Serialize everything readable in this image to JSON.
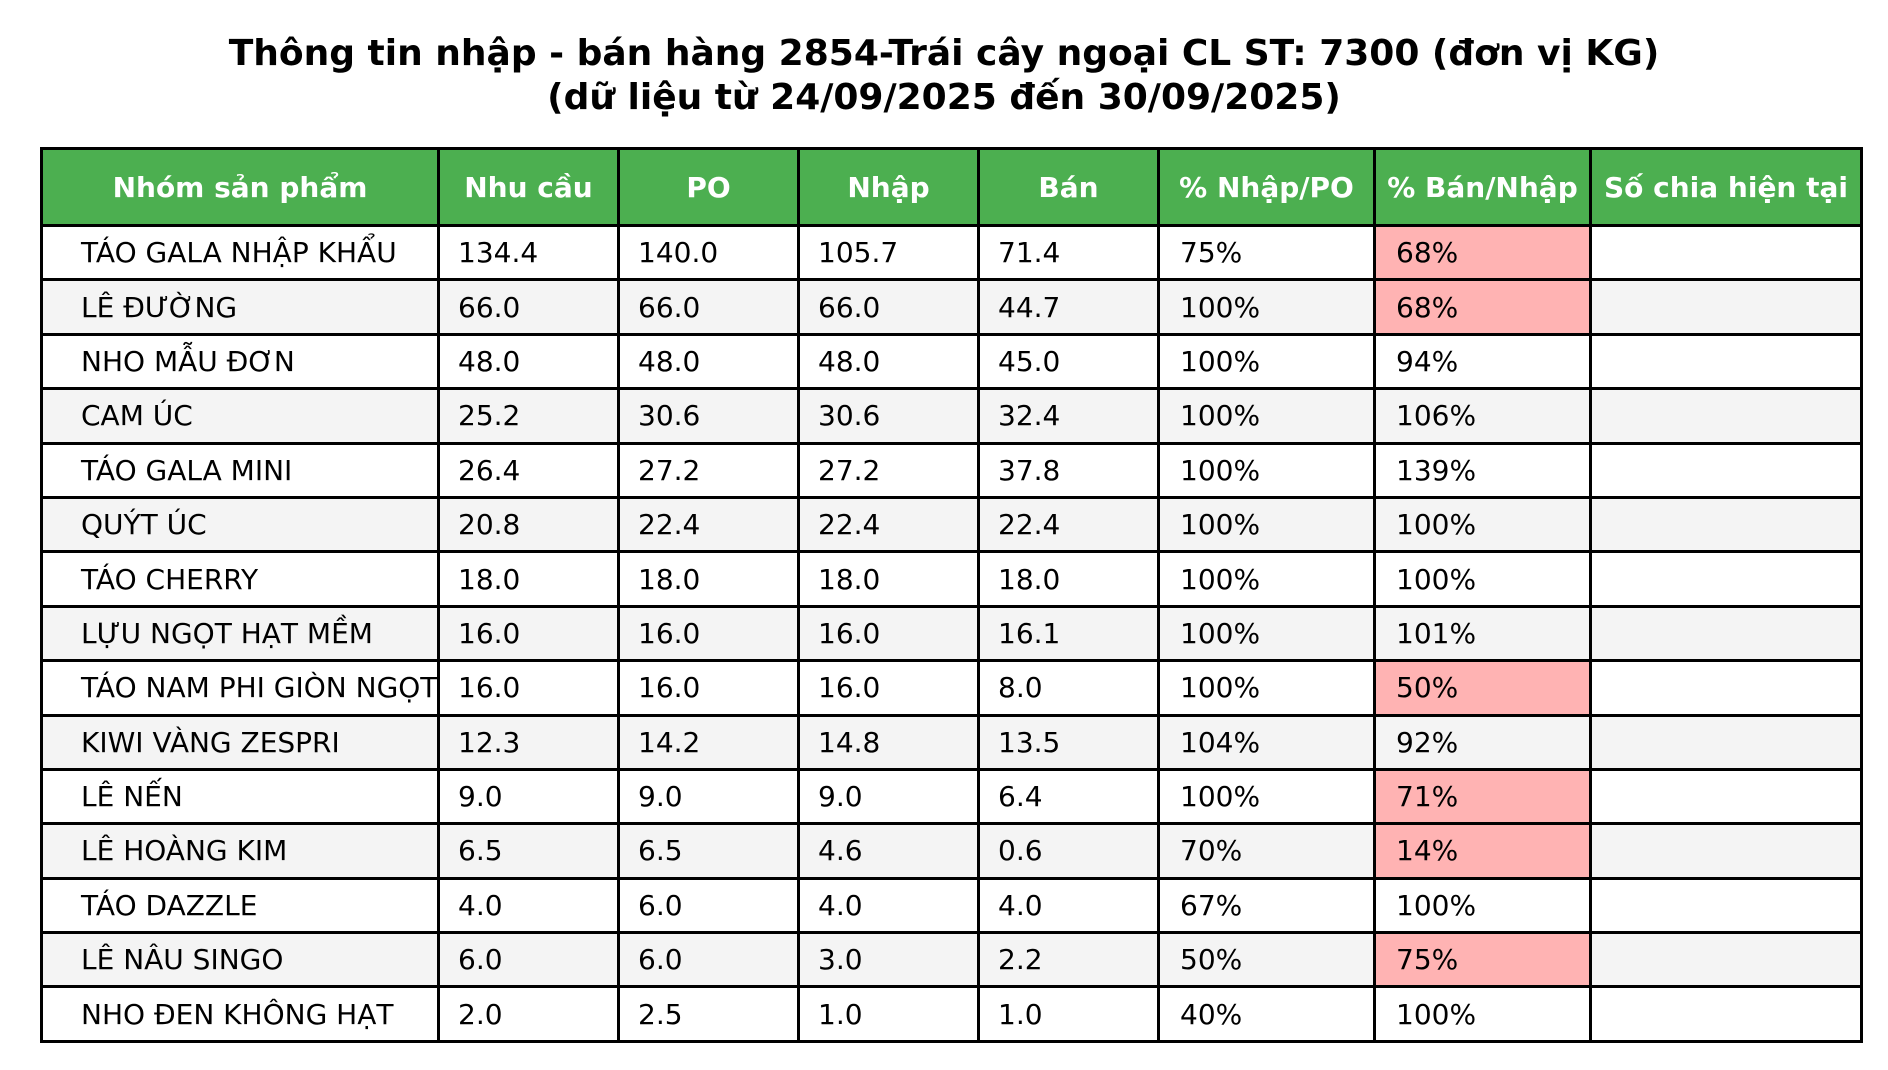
{
  "title_line1": "Thông tin nhập - bán hàng 2854-Trái cây ngoại CL ST: 7300 (đơn vị KG)",
  "title_line2": "(dữ liệu từ 24/09/2025 đến 30/09/2025)",
  "colors": {
    "header_bg": "#4CAF50",
    "header_text": "#ffffff",
    "flag_bg": "#ffb3b3",
    "alt_row_bg": "#f4f4f4"
  },
  "chart_data": {
    "type": "table",
    "title": "Thông tin nhập - bán hàng 2854-Trái cây ngoại CL ST: 7300 (đơn vị KG)",
    "subtitle": "(dữ liệu từ 24/09/2025 đến 30/09/2025)",
    "columns": [
      "Nhóm sản phẩm",
      "Nhu cầu",
      "PO",
      "Nhập",
      "Bán",
      "% Nhập/PO",
      "% Bán/Nhập",
      "Số chia hiện tại"
    ],
    "rows": [
      [
        "TÁO GALA NHẬP KHẨU",
        "134.4",
        "140.0",
        "105.7",
        "71.4",
        "75%",
        "68%",
        ""
      ],
      [
        "LÊ ĐƯỜNG",
        "66.0",
        "66.0",
        "66.0",
        "44.7",
        "100%",
        "68%",
        ""
      ],
      [
        "NHO MẪU ĐƠN",
        "48.0",
        "48.0",
        "48.0",
        "45.0",
        "100%",
        "94%",
        ""
      ],
      [
        "CAM ÚC",
        "25.2",
        "30.6",
        "30.6",
        "32.4",
        "100%",
        "106%",
        ""
      ],
      [
        "TÁO GALA MINI",
        "26.4",
        "27.2",
        "27.2",
        "37.8",
        "100%",
        "139%",
        ""
      ],
      [
        "QUÝT ÚC",
        "20.8",
        "22.4",
        "22.4",
        "22.4",
        "100%",
        "100%",
        ""
      ],
      [
        "TÁO CHERRY",
        "18.0",
        "18.0",
        "18.0",
        "18.0",
        "100%",
        "100%",
        ""
      ],
      [
        "LỰU NGỌT HẠT MỀM",
        "16.0",
        "16.0",
        "16.0",
        "16.1",
        "100%",
        "101%",
        ""
      ],
      [
        "TÁO NAM PHI GIÒN NGỌT",
        "16.0",
        "16.0",
        "16.0",
        "8.0",
        "100%",
        "50%",
        ""
      ],
      [
        "KIWI VÀNG ZESPRI",
        "12.3",
        "14.2",
        "14.8",
        "13.5",
        "104%",
        "92%",
        ""
      ],
      [
        "LÊ NẾN",
        "9.0",
        "9.0",
        "9.0",
        "6.4",
        "100%",
        "71%",
        ""
      ],
      [
        "LÊ HOÀNG KIM",
        "6.5",
        "6.5",
        "4.6",
        "0.6",
        "70%",
        "14%",
        ""
      ],
      [
        "TÁO DAZZLE",
        "4.0",
        "6.0",
        "4.0",
        "4.0",
        "67%",
        "100%",
        ""
      ],
      [
        "LÊ NÂU SINGO",
        "6.0",
        "6.0",
        "3.0",
        "2.2",
        "50%",
        "75%",
        ""
      ],
      [
        "NHO ĐEN KHÔNG HẠT",
        "2.0",
        "2.5",
        "1.0",
        "1.0",
        "40%",
        "100%",
        ""
      ]
    ],
    "highlighted_cells": {
      "column": "% Bán/Nhập",
      "rows": [
        0,
        1,
        8,
        10,
        11,
        13
      ]
    }
  }
}
